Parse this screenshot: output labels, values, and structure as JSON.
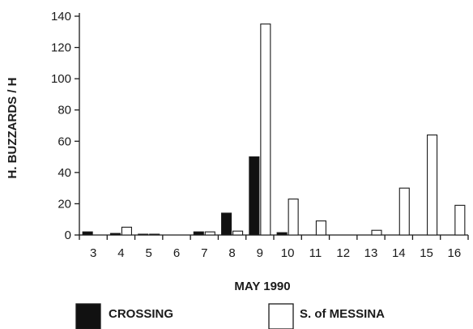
{
  "chart_data": {
    "type": "bar",
    "title": "",
    "xlabel": "MAY 1990",
    "ylabel": "H. BUZZARDS / H",
    "ylim": [
      0,
      140
    ],
    "yticks": [
      0,
      20,
      40,
      60,
      80,
      100,
      120,
      140
    ],
    "grid": false,
    "legend_position": "bottom",
    "categories": [
      "3",
      "4",
      "5",
      "6",
      "7",
      "8",
      "9",
      "10",
      "11",
      "12",
      "13",
      "14",
      "15",
      "16"
    ],
    "series": [
      {
        "name": "CROSSING",
        "fill": "#111111",
        "values": [
          2,
          1,
          0.5,
          0,
          2,
          14,
          50,
          1.5,
          0,
          0,
          0,
          0,
          0,
          0
        ]
      },
      {
        "name": "S. of MESSINA",
        "fill": "#ffffff",
        "values": [
          0,
          5,
          0.5,
          0,
          2,
          2.5,
          135,
          23,
          9,
          0,
          3,
          30,
          64,
          19
        ]
      }
    ]
  }
}
